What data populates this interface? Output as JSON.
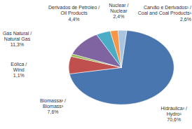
{
  "chart_data": {
    "type": "pie",
    "categories": [
      "Hidráulica² / Hydro²",
      "Biomassa³ / Biomass³",
      "Eólica / Wind",
      "Gás Natural / Natural Gas",
      "Derivados de Petróleo / Oil Products",
      "Nuclear / Nuclear",
      "Carvão e Derivados¹ / Coal and Coal Products¹"
    ],
    "values": [
      70.6,
      7.6,
      1.1,
      11.3,
      4.4,
      2.4,
      2.6
    ],
    "value_labels": [
      "70,6%",
      "7,6%",
      "1,1%",
      "11,3%",
      "4,4%",
      "2,4%",
      "2,6%"
    ],
    "colors": [
      "#4a76b0",
      "#c0504d",
      "#9bbb59",
      "#8064a2",
      "#4bacc6",
      "#f79646",
      "#a9c4e0"
    ],
    "data_labels": true
  }
}
